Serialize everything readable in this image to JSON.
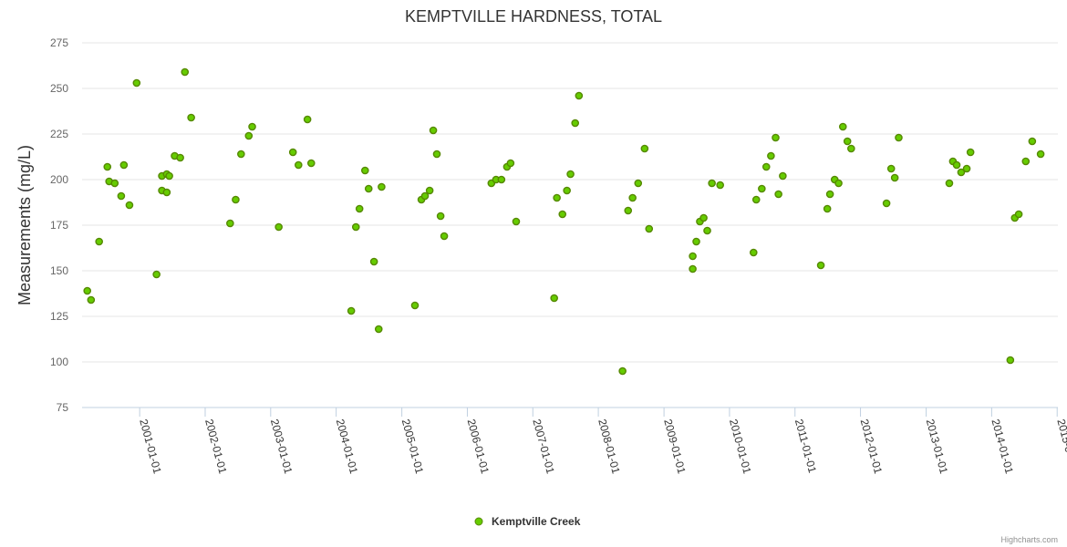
{
  "chart_data": {
    "type": "scatter",
    "title": "KEMPTVILLE HARDNESS, TOTAL",
    "ylabel": "Measurements (mg/L)",
    "xlabel": "",
    "ylim": [
      75,
      275
    ],
    "yticks": [
      75,
      100,
      125,
      150,
      175,
      200,
      225,
      250,
      275
    ],
    "xlim": [
      "2000-02-15",
      "2015-01-05"
    ],
    "xticks": [
      "2001-01-01",
      "2002-01-01",
      "2003-01-01",
      "2004-01-01",
      "2005-01-01",
      "2006-01-01",
      "2007-01-01",
      "2008-01-01",
      "2009-01-01",
      "2010-01-01",
      "2011-01-01",
      "2012-01-01",
      "2013-01-01",
      "2014-01-01",
      "2015-01-01"
    ],
    "xtick_labels": [
      "2001-01-01",
      "2002-01-01",
      "2003-01-01",
      "2004-01-01",
      "2005-01-01",
      "2006-01-01",
      "2007-01-01",
      "2008-01-01",
      "2009-01-01",
      "2010-01-01",
      "2011-01-01",
      "2012-01-01",
      "2013-01-01",
      "2014-01-01",
      "2015-0"
    ],
    "grid": "horizontal",
    "legend_position": "bottom-center",
    "color": "#66cc00",
    "series": [
      {
        "name": "Kemptville Creek",
        "points": [
          [
            "2000-03-15",
            139
          ],
          [
            "2000-04-05",
            134
          ],
          [
            "2000-05-20",
            166
          ],
          [
            "2000-07-05",
            207
          ],
          [
            "2000-07-15",
            199
          ],
          [
            "2000-08-15",
            198
          ],
          [
            "2000-09-20",
            191
          ],
          [
            "2000-10-05",
            208
          ],
          [
            "2000-11-05",
            186
          ],
          [
            "2000-12-15",
            253
          ],
          [
            "2001-04-05",
            148
          ],
          [
            "2001-05-05",
            202
          ],
          [
            "2001-05-05",
            194
          ],
          [
            "2001-06-01",
            203
          ],
          [
            "2001-06-01",
            193
          ],
          [
            "2001-06-15",
            202
          ],
          [
            "2001-07-15",
            213
          ],
          [
            "2001-08-15",
            212
          ],
          [
            "2001-09-10",
            259
          ],
          [
            "2001-10-15",
            234
          ],
          [
            "2002-05-20",
            176
          ],
          [
            "2002-06-20",
            189
          ],
          [
            "2002-07-20",
            214
          ],
          [
            "2002-09-01",
            224
          ],
          [
            "2002-09-20",
            229
          ],
          [
            "2003-02-15",
            174
          ],
          [
            "2003-05-05",
            215
          ],
          [
            "2003-06-05",
            208
          ],
          [
            "2003-07-25",
            233
          ],
          [
            "2003-08-15",
            209
          ],
          [
            "2004-03-25",
            128
          ],
          [
            "2004-04-20",
            174
          ],
          [
            "2004-05-10",
            184
          ],
          [
            "2004-06-10",
            205
          ],
          [
            "2004-06-30",
            195
          ],
          [
            "2004-07-30",
            155
          ],
          [
            "2004-08-25",
            118
          ],
          [
            "2004-09-10",
            196
          ],
          [
            "2005-03-15",
            131
          ],
          [
            "2005-04-20",
            189
          ],
          [
            "2005-05-10",
            191
          ],
          [
            "2005-06-05",
            194
          ],
          [
            "2005-06-25",
            227
          ],
          [
            "2005-07-15",
            214
          ],
          [
            "2005-08-05",
            180
          ],
          [
            "2005-08-25",
            169
          ],
          [
            "2006-05-15",
            198
          ],
          [
            "2006-06-10",
            200
          ],
          [
            "2006-07-10",
            200
          ],
          [
            "2006-08-10",
            207
          ],
          [
            "2006-08-30",
            209
          ],
          [
            "2006-09-30",
            177
          ],
          [
            "2007-04-30",
            135
          ],
          [
            "2007-05-15",
            190
          ],
          [
            "2007-06-15",
            181
          ],
          [
            "2007-07-10",
            194
          ],
          [
            "2007-07-30",
            203
          ],
          [
            "2007-08-25",
            231
          ],
          [
            "2007-09-15",
            246
          ],
          [
            "2008-05-15",
            95
          ],
          [
            "2008-06-15",
            183
          ],
          [
            "2008-07-10",
            190
          ],
          [
            "2008-08-10",
            198
          ],
          [
            "2008-09-15",
            217
          ],
          [
            "2008-10-10",
            173
          ],
          [
            "2009-06-10",
            158
          ],
          [
            "2009-06-10",
            151
          ],
          [
            "2009-06-30",
            166
          ],
          [
            "2009-07-20",
            177
          ],
          [
            "2009-08-10",
            179
          ],
          [
            "2009-08-30",
            172
          ],
          [
            "2009-09-25",
            198
          ],
          [
            "2009-11-10",
            197
          ],
          [
            "2010-05-15",
            160
          ],
          [
            "2010-05-30",
            189
          ],
          [
            "2010-06-30",
            195
          ],
          [
            "2010-07-25",
            207
          ],
          [
            "2010-08-20",
            213
          ],
          [
            "2010-09-15",
            223
          ],
          [
            "2010-10-01",
            192
          ],
          [
            "2010-10-25",
            202
          ],
          [
            "2011-05-25",
            153
          ],
          [
            "2011-06-30",
            184
          ],
          [
            "2011-07-15",
            192
          ],
          [
            "2011-08-10",
            200
          ],
          [
            "2011-09-01",
            198
          ],
          [
            "2011-09-25",
            229
          ],
          [
            "2011-10-20",
            221
          ],
          [
            "2011-11-10",
            217
          ],
          [
            "2012-05-25",
            187
          ],
          [
            "2012-06-20",
            206
          ],
          [
            "2012-07-10",
            201
          ],
          [
            "2012-08-01",
            223
          ],
          [
            "2013-05-10",
            198
          ],
          [
            "2013-05-30",
            210
          ],
          [
            "2013-06-20",
            208
          ],
          [
            "2013-07-15",
            204
          ],
          [
            "2013-08-15",
            206
          ],
          [
            "2013-09-05",
            215
          ],
          [
            "2014-04-15",
            101
          ],
          [
            "2014-05-10",
            179
          ],
          [
            "2014-06-01",
            181
          ],
          [
            "2014-07-10",
            210
          ],
          [
            "2014-08-15",
            221
          ],
          [
            "2014-10-01",
            214
          ]
        ]
      }
    ]
  },
  "credits": "Highcharts.com"
}
